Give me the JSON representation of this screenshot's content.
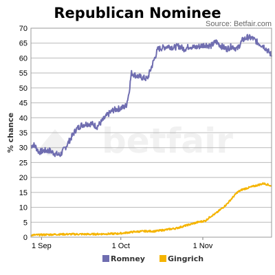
{
  "chart_data": {
    "type": "line",
    "title": "Republican Nominee",
    "source": "Source: Betfair.com",
    "ylabel": "% chance",
    "ylim": [
      0,
      70
    ],
    "yticks": [
      0,
      5,
      10,
      15,
      20,
      25,
      30,
      35,
      40,
      45,
      50,
      55,
      60,
      65,
      70
    ],
    "xlim": [
      "2011-08-28",
      "2011-11-27"
    ],
    "xticks": [
      {
        "date": "2011-09-01",
        "label": "1 Sep"
      },
      {
        "date": "2011-10-01",
        "label": "1 Oct"
      },
      {
        "date": "2011-11-01",
        "label": "1 Nov"
      }
    ],
    "grid": true,
    "legend": "bottom",
    "watermark": "betfair",
    "series": [
      {
        "name": "Romney",
        "color": "#6f6db0",
        "points": [
          [
            "2011-08-28",
            30.5
          ],
          [
            "2011-08-29",
            31
          ],
          [
            "2011-08-30",
            30
          ],
          [
            "2011-08-31",
            28.5
          ],
          [
            "2011-09-02",
            29
          ],
          [
            "2011-09-04",
            29
          ],
          [
            "2011-09-06",
            28
          ],
          [
            "2011-09-08",
            27.5
          ],
          [
            "2011-09-10",
            30
          ],
          [
            "2011-09-12",
            33
          ],
          [
            "2011-09-14",
            36
          ],
          [
            "2011-09-16",
            37.5
          ],
          [
            "2011-09-18",
            38
          ],
          [
            "2011-09-20",
            38
          ],
          [
            "2011-09-22",
            37
          ],
          [
            "2011-09-24",
            39
          ],
          [
            "2011-09-26",
            41
          ],
          [
            "2011-09-28",
            42.5
          ],
          [
            "2011-09-30",
            43
          ],
          [
            "2011-10-02",
            43.5
          ],
          [
            "2011-10-03",
            44
          ],
          [
            "2011-10-04",
            48
          ],
          [
            "2011-10-05",
            55
          ],
          [
            "2011-10-07",
            54
          ],
          [
            "2011-10-09",
            53.5
          ],
          [
            "2011-10-11",
            53
          ],
          [
            "2011-10-13",
            58
          ],
          [
            "2011-10-15",
            63
          ],
          [
            "2011-10-17",
            63.5
          ],
          [
            "2011-10-19",
            64
          ],
          [
            "2011-10-21",
            63.5
          ],
          [
            "2011-10-23",
            64
          ],
          [
            "2011-10-25",
            63
          ],
          [
            "2011-10-27",
            64
          ],
          [
            "2011-10-29",
            63.5
          ],
          [
            "2011-10-31",
            64
          ],
          [
            "2011-11-02",
            64.5
          ],
          [
            "2011-11-04",
            64
          ],
          [
            "2011-11-06",
            65.5
          ],
          [
            "2011-11-08",
            64
          ],
          [
            "2011-11-10",
            63
          ],
          [
            "2011-11-12",
            64
          ],
          [
            "2011-11-14",
            63
          ],
          [
            "2011-11-16",
            66
          ],
          [
            "2011-11-18",
            67
          ],
          [
            "2011-11-20",
            66.5
          ],
          [
            "2011-11-22",
            65
          ],
          [
            "2011-11-24",
            64
          ],
          [
            "2011-11-26",
            62
          ],
          [
            "2011-11-27",
            61
          ]
        ]
      },
      {
        "name": "Gingrich",
        "color": "#f5b400",
        "points": [
          [
            "2011-08-28",
            0.7
          ],
          [
            "2011-09-01",
            0.8
          ],
          [
            "2011-09-05",
            0.9
          ],
          [
            "2011-09-10",
            1
          ],
          [
            "2011-09-15",
            1
          ],
          [
            "2011-09-20",
            1
          ],
          [
            "2011-09-25",
            1.1
          ],
          [
            "2011-09-30",
            1.2
          ],
          [
            "2011-10-03",
            1.5
          ],
          [
            "2011-10-06",
            1.8
          ],
          [
            "2011-10-10",
            2
          ],
          [
            "2011-10-14",
            2
          ],
          [
            "2011-10-18",
            2.5
          ],
          [
            "2011-10-22",
            3
          ],
          [
            "2011-10-26",
            4
          ],
          [
            "2011-10-30",
            5
          ],
          [
            "2011-11-02",
            5.5
          ],
          [
            "2011-11-04",
            7
          ],
          [
            "2011-11-06",
            8
          ],
          [
            "2011-11-08",
            9.5
          ],
          [
            "2011-11-10",
            11
          ],
          [
            "2011-11-12",
            13
          ],
          [
            "2011-11-14",
            15
          ],
          [
            "2011-11-16",
            16
          ],
          [
            "2011-11-18",
            16.5
          ],
          [
            "2011-11-20",
            17
          ],
          [
            "2011-11-22",
            17.5
          ],
          [
            "2011-11-24",
            18
          ],
          [
            "2011-11-26",
            17.5
          ],
          [
            "2011-11-27",
            17
          ]
        ]
      }
    ]
  }
}
